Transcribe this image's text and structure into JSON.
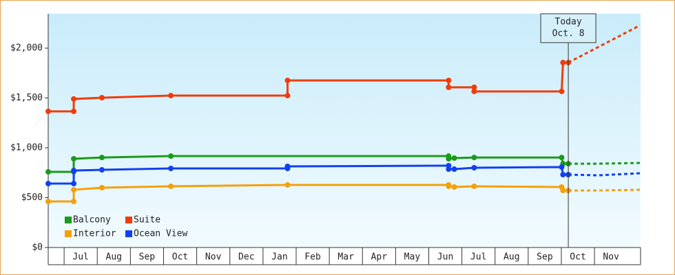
{
  "chart_data": {
    "type": "line",
    "categories": [
      "Jul",
      "Aug",
      "Sep",
      "Oct",
      "Nov",
      "Dec",
      "Jan",
      "Feb",
      "Mar",
      "Apr",
      "May",
      "Jun",
      "Jul",
      "Aug",
      "Sep",
      "Oct",
      "Nov"
    ],
    "xlim": [
      0.52,
      18.39
    ],
    "ylim": [
      0,
      2345
    ],
    "yticks": [
      {
        "value": 0,
        "label": "$0"
      },
      {
        "value": 500,
        "label": "$500"
      },
      {
        "value": 1000,
        "label": "$1,000"
      },
      {
        "value": 1500,
        "label": "$1,500"
      },
      {
        "value": 2000,
        "label": "$2,000"
      }
    ],
    "annotation": {
      "lines": [
        "Today",
        "Oct. 8"
      ],
      "x": 16.21
    },
    "legend": "bottom-left",
    "series": [
      {
        "name": "Balcony",
        "color": "#1a9a1a",
        "x": [
          0.52,
          1.29,
          1.29,
          2.14,
          4.22,
          12.6,
          12.6,
          12.77,
          13.37,
          16.01,
          16.05,
          16.21
        ],
        "values": [
          759,
          759,
          890,
          903,
          917,
          917,
          890,
          897,
          903,
          903,
          841,
          841
        ],
        "forecast_x": [
          16.21,
          17.12,
          18.37
        ],
        "forecast_values": [
          841,
          841,
          848
        ]
      },
      {
        "name": "Suite",
        "color": "#f03c0a",
        "x": [
          0.52,
          1.29,
          1.29,
          2.14,
          4.22,
          7.74,
          7.74,
          12.6,
          12.6,
          13.37,
          13.37,
          16.01,
          16.05,
          16.21
        ],
        "values": [
          1366,
          1366,
          1490,
          1503,
          1524,
          1524,
          1676,
          1676,
          1607,
          1607,
          1566,
          1566,
          1855,
          1855
        ],
        "forecast_x": [
          16.21,
          18.37
        ],
        "forecast_values": [
          1855,
          2228
        ]
      },
      {
        "name": "Interior",
        "color": "#f5a00a",
        "x": [
          0.52,
          1.29,
          1.29,
          2.14,
          4.22,
          7.74,
          12.6,
          12.6,
          12.77,
          13.37,
          16.01,
          16.05,
          16.21
        ],
        "values": [
          462,
          462,
          579,
          600,
          614,
          628,
          628,
          614,
          607,
          614,
          607,
          572,
          572
        ],
        "forecast_x": [
          16.21,
          17.12,
          18.37
        ],
        "forecast_values": [
          572,
          572,
          579
        ]
      },
      {
        "name": "Ocean View",
        "color": "#1040f0",
        "x": [
          0.52,
          1.29,
          1.29,
          2.14,
          4.22,
          7.74,
          7.74,
          12.6,
          12.6,
          12.77,
          13.37,
          16.01,
          16.05,
          16.21
        ],
        "values": [
          641,
          641,
          772,
          779,
          793,
          793,
          814,
          821,
          786,
          786,
          800,
          807,
          731,
          731
        ],
        "forecast_x": [
          16.21,
          17.12,
          18.37
        ],
        "forecast_values": [
          731,
          724,
          745
        ]
      }
    ]
  }
}
